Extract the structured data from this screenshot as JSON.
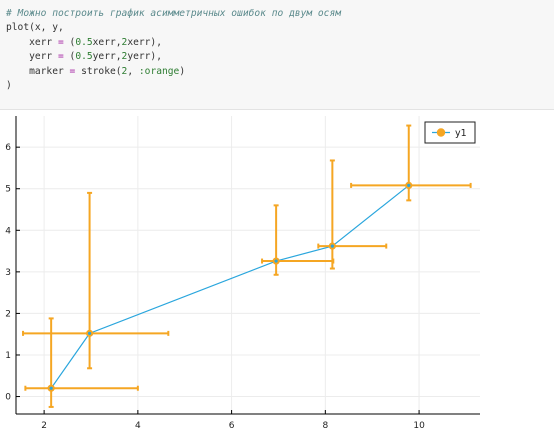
{
  "code": {
    "lines": [
      [
        {
          "t": "# Можно построить график асимметричных ошибок по двум осям",
          "c": "comment"
        }
      ],
      [
        {
          "t": "plot(x, y,",
          "c": "kw"
        }
      ],
      [
        {
          "t": "    xerr ",
          "c": "kw"
        },
        {
          "t": "=",
          "c": "op"
        },
        {
          "t": " (",
          "c": "kw"
        },
        {
          "t": "0.5",
          "c": "num"
        },
        {
          "t": "xerr,",
          "c": "kw"
        },
        {
          "t": "2",
          "c": "num"
        },
        {
          "t": "xerr),",
          "c": "kw"
        }
      ],
      [
        {
          "t": "    yerr ",
          "c": "kw"
        },
        {
          "t": "=",
          "c": "op"
        },
        {
          "t": " (",
          "c": "kw"
        },
        {
          "t": "0.5",
          "c": "num"
        },
        {
          "t": "yerr,",
          "c": "kw"
        },
        {
          "t": "2",
          "c": "num"
        },
        {
          "t": "yerr),",
          "c": "kw"
        }
      ],
      [
        {
          "t": "    marker ",
          "c": "kw"
        },
        {
          "t": "=",
          "c": "op"
        },
        {
          "t": " stroke(",
          "c": "kw"
        },
        {
          "t": "2",
          "c": "num"
        },
        {
          "t": ", ",
          "c": "kw"
        },
        {
          "t": ":orange",
          "c": "sym"
        },
        {
          "t": ")",
          "c": "kw"
        }
      ],
      [
        {
          "t": ")",
          "c": "kw"
        }
      ]
    ]
  },
  "chart_data": {
    "type": "scatter",
    "title": "",
    "xlabel": "",
    "ylabel": "",
    "xlim": [
      1.4,
      11.3
    ],
    "ylim": [
      -0.42,
      6.75
    ],
    "xticks": [
      2,
      4,
      6,
      8,
      10
    ],
    "yticks": [
      0,
      1,
      2,
      3,
      4,
      5,
      6
    ],
    "grid": true,
    "legend_position": "top-right",
    "series": [
      {
        "name": "y1",
        "line_color": "#2aa6dd",
        "marker_color": "#f5a623",
        "points": [
          {
            "x": 2.15,
            "y": 0.2,
            "xmin": 1.6,
            "xmax": 4.0,
            "ymin": -0.25,
            "ymax": 1.88
          },
          {
            "x": 2.97,
            "y": 1.52,
            "xmin": 1.55,
            "xmax": 4.65,
            "ymin": 0.68,
            "ymax": 4.9
          },
          {
            "x": 6.95,
            "y": 3.26,
            "xmin": 6.65,
            "xmax": 8.17,
            "ymin": 2.93,
            "ymax": 4.6
          },
          {
            "x": 8.15,
            "y": 3.62,
            "xmin": 7.85,
            "xmax": 9.3,
            "ymin": 3.08,
            "ymax": 5.68
          },
          {
            "x": 9.78,
            "y": 5.08,
            "xmin": 8.55,
            "xmax": 11.1,
            "ymin": 4.72,
            "ymax": 6.52
          }
        ]
      }
    ]
  }
}
